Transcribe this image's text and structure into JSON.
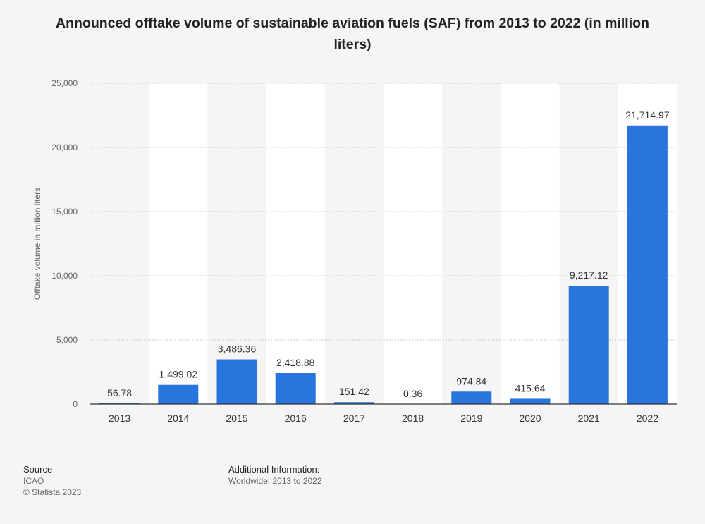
{
  "chart_data": {
    "type": "bar",
    "title": "Announced offtake volume of sustainable aviation fuels (SAF) from 2013 to 2022 (in million liters)",
    "ylabel": "Offtake volume in million liters",
    "xlabel": "",
    "categories": [
      "2013",
      "2014",
      "2015",
      "2016",
      "2017",
      "2018",
      "2019",
      "2020",
      "2021",
      "2022"
    ],
    "values": [
      56.78,
      1499.02,
      3486.36,
      2418.88,
      151.42,
      0.36,
      974.84,
      415.64,
      9217.12,
      21714.97
    ],
    "value_labels": [
      "56.78",
      "1,499.02",
      "3,486.36",
      "2,418.88",
      "151.42",
      "0.36",
      "974.84",
      "415.64",
      "9,217.12",
      "21,714.97"
    ],
    "ylim": [
      0,
      25000
    ],
    "yticks": [
      0,
      5000,
      10000,
      15000,
      20000,
      25000
    ],
    "ytick_labels": [
      "0",
      "5,000",
      "10,000",
      "15,000",
      "20,000",
      "25,000"
    ],
    "grid": true,
    "bar_color": "#2876dd"
  },
  "footer": {
    "source_heading": "Source",
    "source_name": "ICAO",
    "copyright": "© Statista 2023",
    "additional_heading": "Additional Information:",
    "additional_text": "Worldwide; 2013 to 2022"
  }
}
